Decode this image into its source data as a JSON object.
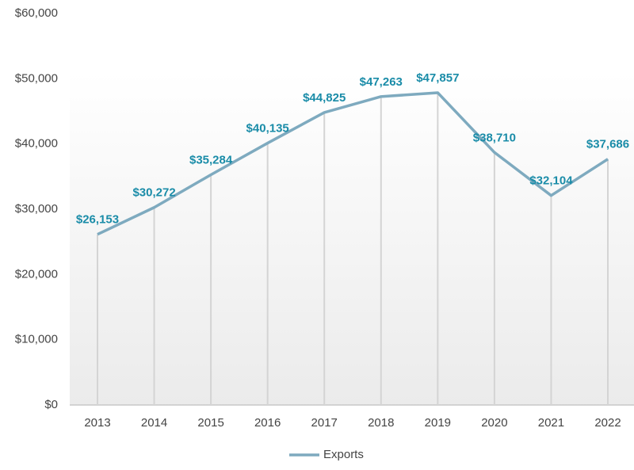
{
  "chart_data": {
    "type": "line",
    "categories": [
      "2013",
      "2014",
      "2015",
      "2016",
      "2017",
      "2018",
      "2019",
      "2020",
      "2021",
      "2022"
    ],
    "series": [
      {
        "name": "Exports",
        "color": "#7eaabf",
        "values": [
          26153,
          30272,
          35284,
          40135,
          44825,
          47263,
          47857,
          38710,
          32104,
          37686
        ],
        "value_labels": [
          "$26,153",
          "$30,272",
          "$35,284",
          "$40,135",
          "$44,825",
          "$47,263",
          "$47,857",
          "$38,710",
          "$32,104",
          "$37,686"
        ]
      }
    ],
    "ylim": [
      0,
      60000
    ],
    "yticks": [
      {
        "value": 0,
        "label": "$0"
      },
      {
        "value": 10000,
        "label": "$10,000"
      },
      {
        "value": 20000,
        "label": "$20,000"
      },
      {
        "value": 30000,
        "label": "$30,000"
      },
      {
        "value": 40000,
        "label": "$40,000"
      },
      {
        "value": 50000,
        "label": "$50,000"
      },
      {
        "value": 60000,
        "label": "$60,000"
      }
    ],
    "legend": "bottom"
  }
}
